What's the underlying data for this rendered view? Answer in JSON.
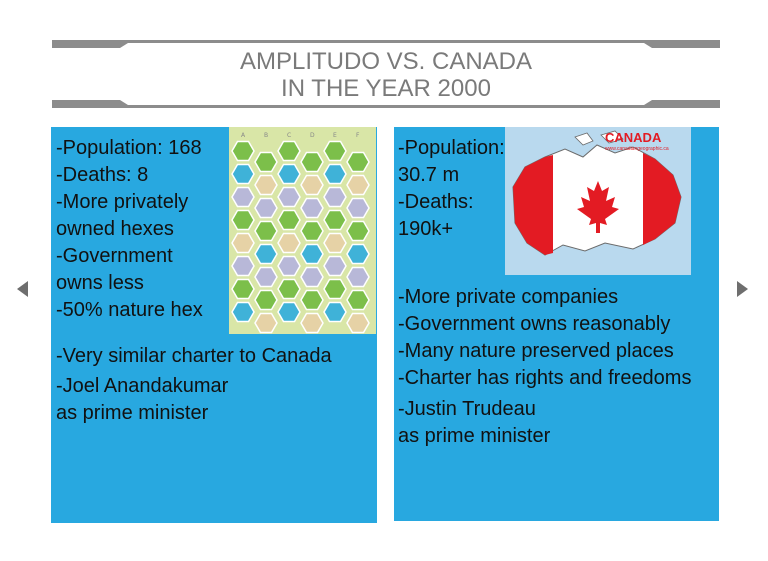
{
  "slide": {
    "title_line1": "AMPLITUDO VS. CANADA",
    "title_line2": "IN THE YEAR 2000"
  },
  "left_panel": {
    "lines": [
      "-Population: 168",
      "-Deaths: 8",
      "-More privately",
      "owned hexes",
      "-Government",
      "owns less",
      "-50% nature hex"
    ],
    "lines_lower": [
      "-Very similar charter to Canada",
      "-Joel Anandakumar",
      "as prime minister"
    ],
    "map_column_labels": [
      "A",
      "B",
      "C",
      "D",
      "E",
      "F"
    ]
  },
  "right_panel": {
    "lines_top": [
      "-Population:",
      "30.7 m",
      "-Deaths:",
      "190k+"
    ],
    "lines_lower": [
      "-More private companies",
      "-Government owns reasonably",
      "-Many nature preserved places",
      "-Charter has rights and freedoms",
      "-Justin Trudeau",
      "as prime minister"
    ],
    "image_caption": "CANADA",
    "image_url_text": "www.canadiangeographic.ca"
  },
  "nav": {
    "prev_icon": "triangle-left-icon",
    "next_icon": "triangle-right-icon"
  },
  "colors": {
    "panel_blue": "#28a8e0",
    "title_gray": "#7a7a7a",
    "bar_gray": "#8c8c8c",
    "canada_red": "#e31b23"
  }
}
